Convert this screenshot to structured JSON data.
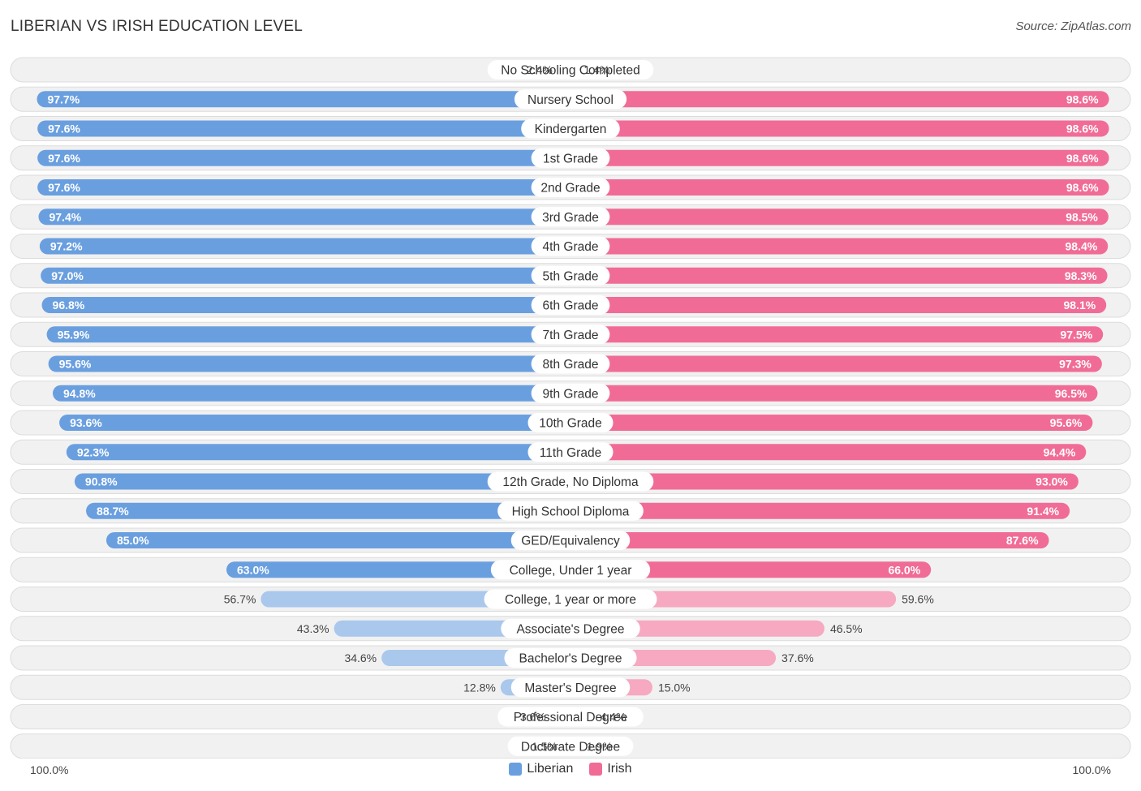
{
  "title": "LIBERIAN VS IRISH EDUCATION LEVEL",
  "source": "Source: ZipAtlas.com",
  "colors": {
    "liberian_strong": "#6a9fdf",
    "liberian_light": "#a9c8ec",
    "irish_strong": "#f06c96",
    "irish_light": "#f6a9c1"
  },
  "axis": {
    "left_label": "100.0%",
    "right_label": "100.0%"
  },
  "legend": [
    {
      "name": "Liberian",
      "color": "#6a9fdf"
    },
    {
      "name": "Irish",
      "color": "#f06c96"
    }
  ],
  "chart_data": {
    "type": "bar",
    "orientation": "diverging-horizontal",
    "title": "LIBERIAN VS IRISH EDUCATION LEVEL",
    "xlim": [
      0,
      100
    ],
    "categories": [
      "No Schooling Completed",
      "Nursery School",
      "Kindergarten",
      "1st Grade",
      "2nd Grade",
      "3rd Grade",
      "4th Grade",
      "5th Grade",
      "6th Grade",
      "7th Grade",
      "8th Grade",
      "9th Grade",
      "10th Grade",
      "11th Grade",
      "12th Grade, No Diploma",
      "High School Diploma",
      "GED/Equivalency",
      "College, Under 1 year",
      "College, 1 year or more",
      "Associate's Degree",
      "Bachelor's Degree",
      "Master's Degree",
      "Professional Degree",
      "Doctorate Degree"
    ],
    "series": [
      {
        "name": "Liberian",
        "values": [
          2.4,
          97.7,
          97.6,
          97.6,
          97.6,
          97.4,
          97.2,
          97.0,
          96.8,
          95.9,
          95.6,
          94.8,
          93.6,
          92.3,
          90.8,
          88.7,
          85.0,
          63.0,
          56.7,
          43.3,
          34.6,
          12.8,
          3.6,
          1.5
        ]
      },
      {
        "name": "Irish",
        "values": [
          1.4,
          98.6,
          98.6,
          98.6,
          98.6,
          98.5,
          98.4,
          98.3,
          98.1,
          97.5,
          97.3,
          96.5,
          95.6,
          94.4,
          93.0,
          91.4,
          87.6,
          66.0,
          59.6,
          46.5,
          37.6,
          15.0,
          4.4,
          1.9
        ]
      }
    ],
    "labels": {
      "Liberian": [
        "2.4%",
        "97.7%",
        "97.6%",
        "97.6%",
        "97.6%",
        "97.4%",
        "97.2%",
        "97.0%",
        "96.8%",
        "95.9%",
        "95.6%",
        "94.8%",
        "93.6%",
        "92.3%",
        "90.8%",
        "88.7%",
        "85.0%",
        "63.0%",
        "56.7%",
        "43.3%",
        "34.6%",
        "12.8%",
        "3.6%",
        "1.5%"
      ],
      "Irish": [
        "1.4%",
        "98.6%",
        "98.6%",
        "98.6%",
        "98.6%",
        "98.5%",
        "98.4%",
        "98.3%",
        "98.1%",
        "97.5%",
        "97.3%",
        "96.5%",
        "95.6%",
        "94.4%",
        "93.0%",
        "91.4%",
        "87.6%",
        "66.0%",
        "59.6%",
        "46.5%",
        "37.6%",
        "15.0%",
        "4.4%",
        "1.9%"
      ]
    },
    "legend_position": "bottom-center"
  }
}
